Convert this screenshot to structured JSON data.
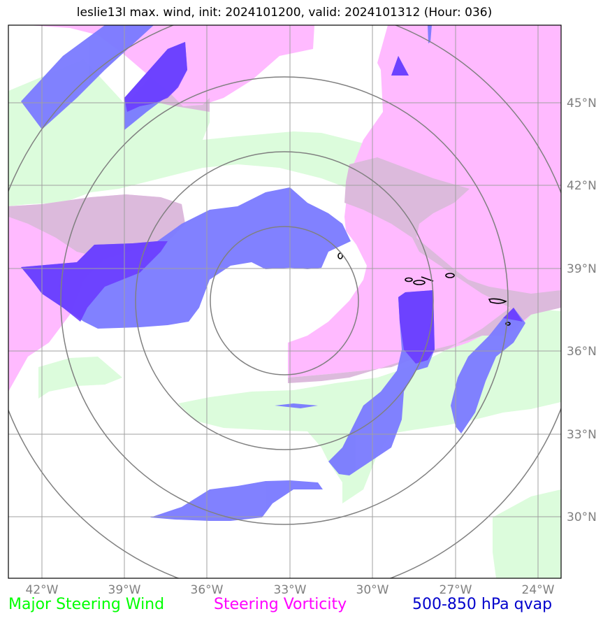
{
  "title": "leslie13l max. wind, init: 2024101200, valid: 2024101312 (Hour: 036)",
  "lon_labels": [
    "42°W",
    "39°W",
    "36°W",
    "33°W",
    "30°W",
    "27°W",
    "24°W"
  ],
  "lat_labels": [
    "45°N",
    "42°N",
    "39°N",
    "36°N",
    "33°N",
    "30°N"
  ],
  "legend": [
    {
      "label": "Major Steering Wind",
      "color": "#00ff00"
    },
    {
      "label": "Steering Vorticity",
      "color": "#ff00ff"
    },
    {
      "label": "500-850 hPa qvap",
      "color": "#0000cc"
    }
  ],
  "colors": {
    "wind_fill": "#dcfcdc",
    "vorticity_fill": "#ffbaff",
    "qvap_fill": "#7a7aff",
    "overlap_purple": "#dcbadc",
    "gridline": "#808080"
  }
}
